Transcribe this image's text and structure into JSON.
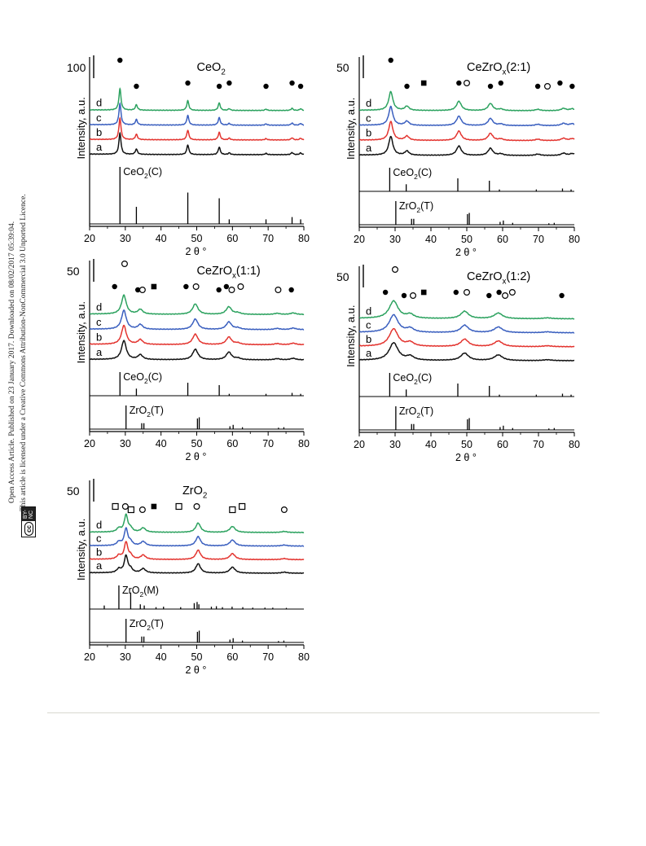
{
  "sidebar": {
    "line1": "Open Access Article. Published on 23 January 2017. Downloaded on 08/02/2017 05:39:04.",
    "line2": "This article is licensed under a Creative Commons Attribution-NonCommercial 3.0 Unported Licence.",
    "badge_cc": "cc",
    "badge_license": "BY-NC"
  },
  "colors": {
    "d": "#2ca25f",
    "c": "#3a5fbf",
    "b": "#e3342f",
    "a": "#111111"
  },
  "chart_data": [
    {
      "type": "line",
      "title": "CeO2",
      "scale_label": "100",
      "ylabel": "Intensity, a.u.",
      "xlabel": "2 θ °",
      "xlim": [
        20,
        80
      ],
      "xticks": [
        20,
        30,
        40,
        50,
        60,
        70,
        80
      ],
      "series_labels": [
        "d",
        "c",
        "b",
        "a"
      ],
      "peaks": [
        [
          28.5,
          1.0,
          0.35
        ],
        [
          33.1,
          0.25,
          0.35
        ],
        [
          47.5,
          0.45,
          0.35
        ],
        [
          56.3,
          0.35,
          0.35
        ],
        [
          59.1,
          0.08,
          0.35
        ],
        [
          69.4,
          0.06,
          0.35
        ],
        [
          76.7,
          0.1,
          0.35
        ],
        [
          79.1,
          0.08,
          0.35
        ]
      ],
      "reference_patterns": [
        {
          "label": "CeO2(C)",
          "lines": [
            [
              28.5,
              1.0
            ],
            [
              33.1,
              0.3
            ],
            [
              47.5,
              0.55
            ],
            [
              56.3,
              0.45
            ],
            [
              59.1,
              0.08
            ],
            [
              69.4,
              0.08
            ],
            [
              76.7,
              0.12
            ],
            [
              79.1,
              0.08
            ]
          ]
        }
      ],
      "markers": [
        {
          "symbol": "filled-circle",
          "x": [
            28.5,
            33.1,
            47.5,
            56.3,
            59.1,
            69.4,
            76.7,
            79.1
          ]
        }
      ]
    },
    {
      "type": "line",
      "title": "CeZrOx(2:1)",
      "scale_label": "50",
      "ylabel": "Intensity, a.u.",
      "xlabel": "2 θ °",
      "xlim": [
        20,
        80
      ],
      "xticks": [
        20,
        30,
        40,
        50,
        60,
        70,
        80
      ],
      "series_labels": [
        "d",
        "c",
        "b",
        "a"
      ],
      "peaks": [
        [
          28.8,
          1.0,
          0.7
        ],
        [
          33.3,
          0.22,
          0.7
        ],
        [
          47.8,
          0.5,
          0.8
        ],
        [
          56.6,
          0.38,
          0.8
        ],
        [
          59.5,
          0.08,
          0.8
        ],
        [
          69.8,
          0.07,
          0.8
        ],
        [
          77.0,
          0.12,
          0.8
        ],
        [
          79.4,
          0.1,
          0.8
        ]
      ],
      "reference_patterns": [
        {
          "label": "CeO2(C)",
          "lines": [
            [
              28.5,
              1.0
            ],
            [
              33.1,
              0.3
            ],
            [
              47.5,
              0.55
            ],
            [
              56.3,
              0.45
            ],
            [
              59.1,
              0.08
            ],
            [
              69.4,
              0.08
            ],
            [
              76.7,
              0.12
            ],
            [
              79.1,
              0.08
            ]
          ]
        },
        {
          "label": "ZrO2(T)",
          "lines": [
            [
              30.2,
              1.0
            ],
            [
              34.6,
              0.25
            ],
            [
              35.2,
              0.25
            ],
            [
              50.2,
              0.45
            ],
            [
              50.7,
              0.5
            ],
            [
              59.3,
              0.12
            ],
            [
              60.2,
              0.18
            ],
            [
              62.8,
              0.08
            ],
            [
              72.9,
              0.06
            ],
            [
              74.4,
              0.08
            ]
          ]
        }
      ],
      "markers": [
        {
          "symbol": "filled-circle",
          "x": [
            28.8,
            33.3,
            47.8,
            56.6,
            59.5,
            69.8,
            76.0,
            79.4
          ]
        },
        {
          "symbol": "open-circle",
          "x": [
            50.0,
            72.5
          ]
        },
        {
          "symbol": "filled-square",
          "x": [
            38.0
          ]
        }
      ]
    },
    {
      "type": "line",
      "title": "CeZrOx(1:1)",
      "scale_label": "50",
      "ylabel": "Intensity, a.u.",
      "xlabel": "2 θ °",
      "xlim": [
        20,
        80
      ],
      "xticks": [
        20,
        30,
        40,
        50,
        60,
        70,
        80
      ],
      "series_labels": [
        "d",
        "c",
        "b",
        "a"
      ],
      "peaks": [
        [
          29.6,
          1.0,
          0.8
        ],
        [
          34.2,
          0.25,
          0.8
        ],
        [
          49.6,
          0.55,
          0.9
        ],
        [
          59.0,
          0.4,
          0.9
        ],
        [
          61.5,
          0.08,
          0.9
        ],
        [
          72.5,
          0.06,
          0.9
        ],
        [
          77.0,
          0.08,
          0.9
        ]
      ],
      "reference_patterns": [
        {
          "label": "CeO2(C)",
          "lines": [
            [
              28.5,
              1.0
            ],
            [
              33.1,
              0.3
            ],
            [
              47.5,
              0.55
            ],
            [
              56.3,
              0.45
            ],
            [
              59.1,
              0.08
            ],
            [
              69.4,
              0.08
            ],
            [
              76.7,
              0.12
            ],
            [
              79.1,
              0.08
            ]
          ]
        },
        {
          "label": "ZrO2(T)",
          "lines": [
            [
              30.2,
              1.0
            ],
            [
              34.6,
              0.25
            ],
            [
              35.2,
              0.25
            ],
            [
              50.2,
              0.45
            ],
            [
              50.7,
              0.5
            ],
            [
              59.3,
              0.12
            ],
            [
              60.2,
              0.18
            ],
            [
              62.8,
              0.08
            ],
            [
              72.9,
              0.06
            ],
            [
              74.4,
              0.08
            ]
          ]
        }
      ],
      "markers": [
        {
          "symbol": "filled-circle",
          "x": [
            27.0,
            33.5,
            47.0,
            56.2,
            58.3,
            76.5
          ]
        },
        {
          "symbol": "open-circle",
          "x": [
            29.8,
            34.8,
            49.8,
            59.8,
            62.3,
            72.8
          ]
        },
        {
          "symbol": "filled-square",
          "x": [
            38.0
          ]
        }
      ]
    },
    {
      "type": "line",
      "title": "CeZrOx(1:2)",
      "scale_label": "50",
      "ylabel": "Intensity, a.u.",
      "xlabel": "2 θ °",
      "xlim": [
        20,
        80
      ],
      "xticks": [
        20,
        30,
        40,
        50,
        60,
        70,
        80
      ],
      "series_labels": [
        "d",
        "c",
        "b",
        "a"
      ],
      "peaks": [
        [
          29.6,
          1.0,
          1.5
        ],
        [
          34.2,
          0.22,
          1.2
        ],
        [
          49.4,
          0.42,
          1.3
        ],
        [
          58.8,
          0.32,
          1.4
        ],
        [
          72.5,
          0.05,
          1.4
        ]
      ],
      "reference_patterns": [
        {
          "label": "CeO2(C)",
          "lines": [
            [
              28.5,
              1.0
            ],
            [
              33.1,
              0.3
            ],
            [
              47.5,
              0.55
            ],
            [
              56.3,
              0.45
            ],
            [
              59.1,
              0.08
            ],
            [
              69.4,
              0.08
            ],
            [
              76.7,
              0.12
            ],
            [
              79.1,
              0.08
            ]
          ]
        },
        {
          "label": "ZrO2(T)",
          "lines": [
            [
              30.2,
              1.0
            ],
            [
              34.6,
              0.25
            ],
            [
              35.2,
              0.25
            ],
            [
              50.2,
              0.45
            ],
            [
              50.7,
              0.5
            ],
            [
              59.3,
              0.12
            ],
            [
              60.2,
              0.18
            ],
            [
              62.8,
              0.08
            ],
            [
              72.9,
              0.06
            ],
            [
              74.4,
              0.08
            ]
          ]
        }
      ],
      "markers": [
        {
          "symbol": "filled-circle",
          "x": [
            27.3,
            32.5,
            47.0,
            56.2,
            59.0,
            76.5
          ]
        },
        {
          "symbol": "open-circle",
          "x": [
            30.0,
            35.0,
            50.0,
            60.7,
            62.7
          ]
        },
        {
          "symbol": "filled-square",
          "x": [
            38.0
          ]
        }
      ]
    },
    {
      "type": "line",
      "title": "ZrO2",
      "scale_label": "50",
      "ylabel": "Intensity, a.u.",
      "xlabel": "2 θ °",
      "xlim": [
        20,
        80
      ],
      "xticks": [
        20,
        30,
        40,
        50,
        60,
        70,
        80
      ],
      "series_labels": [
        "d",
        "c",
        "b",
        "a"
      ],
      "peaks": [
        [
          28.2,
          0.22,
          0.7
        ],
        [
          30.2,
          1.0,
          0.6
        ],
        [
          31.5,
          0.2,
          0.6
        ],
        [
          35.0,
          0.25,
          0.8
        ],
        [
          50.4,
          0.55,
          0.8
        ],
        [
          60.0,
          0.35,
          0.9
        ],
        [
          74.5,
          0.06,
          0.9
        ]
      ],
      "reference_patterns": [
        {
          "label": "ZrO2(M)",
          "lines": [
            [
              24.1,
              0.15
            ],
            [
              28.2,
              1.0
            ],
            [
              31.5,
              0.7
            ],
            [
              34.2,
              0.2
            ],
            [
              35.3,
              0.15
            ],
            [
              38.6,
              0.08
            ],
            [
              40.7,
              0.1
            ],
            [
              45.5,
              0.08
            ],
            [
              49.3,
              0.25
            ],
            [
              50.1,
              0.3
            ],
            [
              50.6,
              0.2
            ],
            [
              54.1,
              0.1
            ],
            [
              55.5,
              0.12
            ],
            [
              57.2,
              0.08
            ],
            [
              59.9,
              0.1
            ],
            [
              62.9,
              0.08
            ],
            [
              65.7,
              0.06
            ],
            [
              69.1,
              0.06
            ],
            [
              71.3,
              0.06
            ],
            [
              75.1,
              0.05
            ]
          ]
        },
        {
          "label": "ZrO2(T)",
          "lines": [
            [
              30.2,
              1.0
            ],
            [
              34.6,
              0.25
            ],
            [
              35.2,
              0.25
            ],
            [
              50.2,
              0.45
            ],
            [
              50.7,
              0.5
            ],
            [
              59.3,
              0.12
            ],
            [
              60.2,
              0.18
            ],
            [
              62.8,
              0.08
            ],
            [
              72.9,
              0.06
            ],
            [
              74.4,
              0.08
            ]
          ]
        }
      ],
      "markers": [
        {
          "symbol": "open-square",
          "x": [
            27.2,
            31.6,
            45.0,
            60.0,
            62.7
          ]
        },
        {
          "symbol": "open-circle",
          "x": [
            30.0,
            34.8,
            50.0,
            74.5
          ]
        },
        {
          "symbol": "filled-square",
          "x": [
            38.0
          ]
        }
      ]
    }
  ]
}
